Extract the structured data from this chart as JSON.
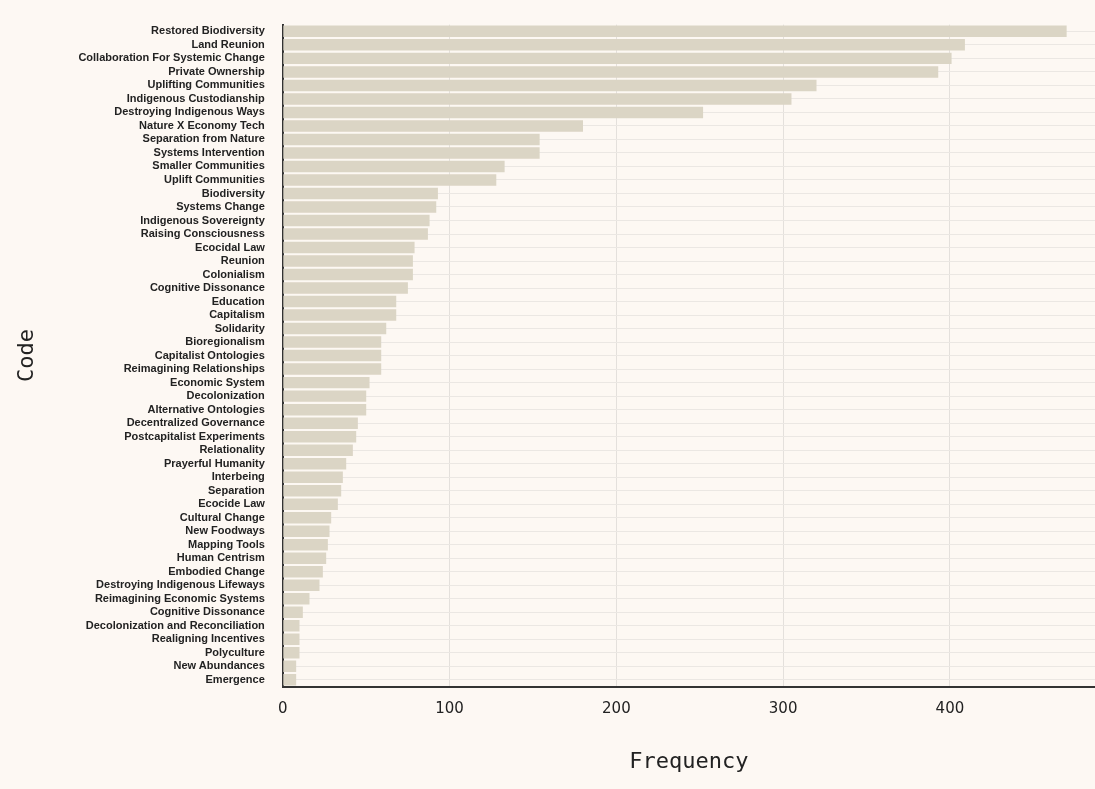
{
  "chart_data": {
    "type": "bar",
    "orientation": "horizontal",
    "xlabel": "Frequency",
    "ylabel": "Code",
    "categories": [
      "Restored Biodiversity",
      "Land Reunion",
      "Collaboration For Systemic Change",
      "Private Ownership",
      "Uplifting Communities",
      "Indigenous Custodianship",
      "Destroying Indigenous Ways",
      "Nature X Economy Tech",
      "Separation from Nature",
      "Systems Intervention",
      "Smaller Communities",
      "Uplift Communities",
      "Biodiversity",
      "Systems Change",
      "Indigenous Sovereignty",
      "Raising Consciousness",
      "Ecocidal Law",
      "Reunion",
      "Colonialism",
      "Cognitive Dissonance",
      "Education",
      "Capitalism",
      "Solidarity",
      "Bioregionalism",
      "Capitalist Ontologies",
      "Reimagining Relationships",
      "Economic System",
      "Decolonization",
      "Alternative Ontologies",
      "Decentralized Governance",
      "Postcapitalist Experiments",
      "Relationality",
      "Prayerful Humanity",
      "Interbeing",
      "Separation",
      "Ecocide Law",
      "Cultural Change",
      "New Foodways",
      "Mapping Tools",
      "Human Centrism",
      "Embodied Change",
      "Destroying Indigenous Lifeways",
      "Reimagining Economic Systems",
      "Cognitive Dissonance",
      "Decolonization and Reconciliation",
      "Realigning Incentives",
      "Polyculture",
      "New Abundances",
      "Emergence"
    ],
    "values": [
      470,
      409,
      401,
      393,
      320,
      305,
      252,
      180,
      154,
      154,
      133,
      128,
      93,
      92,
      88,
      87,
      79,
      78,
      78,
      75,
      68,
      68,
      62,
      59,
      59,
      59,
      52,
      50,
      50,
      45,
      44,
      42,
      38,
      36,
      35,
      33,
      29,
      28,
      27,
      26,
      24,
      22,
      16,
      12,
      10,
      10,
      10,
      8,
      8
    ],
    "color": "#dbd5c5",
    "xlim": [
      0,
      487
    ],
    "xticks": [
      0,
      100,
      200,
      300,
      400
    ],
    "grid": true
  }
}
